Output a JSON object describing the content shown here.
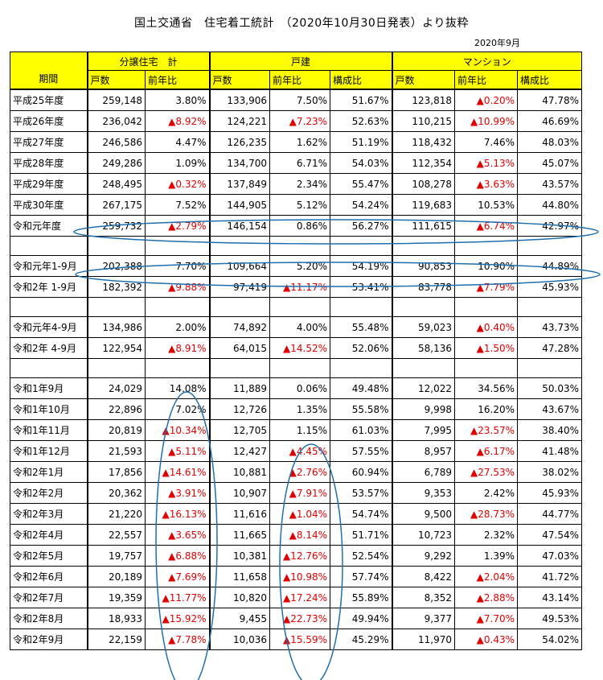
{
  "title": "国土交通省　住宅着工統計　（2020年10月30日発表）より抜粋",
  "subtitle": "2020年9月",
  "header": {
    "period": "期間",
    "group1": "分譲住宅　計",
    "group2": "戸建",
    "group3": "マンション",
    "units": "戸数",
    "yoy": "前年比",
    "share": "構成比"
  },
  "rows": [
    {
      "label": "平成25年度",
      "a": "259,148",
      "b": "3.80%",
      "c": "133,906",
      "d": "7.50%",
      "e": "51.67%",
      "f": "123,818",
      "g": "▲0.20%",
      "h": "47.78%"
    },
    {
      "label": "平成26年度",
      "a": "236,042",
      "b": "▲8.92%",
      "c": "124,221",
      "d": "▲7.23%",
      "e": "52.63%",
      "f": "110,215",
      "g": "▲10.99%",
      "h": "46.69%"
    },
    {
      "label": "平成27年度",
      "a": "246,586",
      "b": "4.47%",
      "c": "126,235",
      "d": "1.62%",
      "e": "51.19%",
      "f": "118,432",
      "g": "7.46%",
      "h": "48.03%"
    },
    {
      "label": "平成28年度",
      "a": "249,286",
      "b": "1.09%",
      "c": "134,700",
      "d": "6.71%",
      "e": "54.03%",
      "f": "112,354",
      "g": "▲5.13%",
      "h": "45.07%"
    },
    {
      "label": "平成29年度",
      "a": "248,495",
      "b": "▲0.32%",
      "c": "137,849",
      "d": "2.34%",
      "e": "55.47%",
      "f": "108,278",
      "g": "▲3.63%",
      "h": "43.57%"
    },
    {
      "label": "平成30年度",
      "a": "267,175",
      "b": "7.52%",
      "c": "144,905",
      "d": "5.12%",
      "e": "54.24%",
      "f": "119,683",
      "g": "10.53%",
      "h": "44.80%"
    },
    {
      "label": "令和元年度",
      "a": "259,732",
      "b": "▲2.79%",
      "c": "146,154",
      "d": "0.86%",
      "e": "56.27%",
      "f": "111,615",
      "g": "▲6.74%",
      "h": "42.97%"
    },
    {
      "gap": true
    },
    {
      "label": "令和元年1-9月",
      "a": "202,388",
      "b": "7.70%",
      "c": "109,664",
      "d": "5.20%",
      "e": "54.19%",
      "f": "90,853",
      "g": "10.90%",
      "h": "44.89%"
    },
    {
      "label": "令和2年 1-9月",
      "a": "182,392",
      "b": "▲9.88%",
      "c": "97,419",
      "d": "▲11.17%",
      "e": "53.41%",
      "f": "83,778",
      "g": "▲7.79%",
      "h": "45.93%"
    },
    {
      "gap": true
    },
    {
      "label": "令和元年4-9月",
      "a": "134,986",
      "b": "2.00%",
      "c": "74,892",
      "d": "4.00%",
      "e": "55.48%",
      "f": "59,023",
      "g": "▲0.40%",
      "h": "43.73%"
    },
    {
      "label": "令和2年 4-9月",
      "a": "122,954",
      "b": "▲8.91%",
      "c": "64,015",
      "d": "▲14.52%",
      "e": "52.06%",
      "f": "58,136",
      "g": "▲1.50%",
      "h": "47.28%"
    },
    {
      "gap": true
    },
    {
      "label": "令和1年9月",
      "a": "24,029",
      "b": "14.08%",
      "c": "11,889",
      "d": "0.06%",
      "e": "49.48%",
      "f": "12,022",
      "g": "34.56%",
      "h": "50.03%"
    },
    {
      "label": "令和1年10月",
      "a": "22,896",
      "b": "7.02%",
      "c": "12,726",
      "d": "1.35%",
      "e": "55.58%",
      "f": "9,998",
      "g": "16.20%",
      "h": "43.67%"
    },
    {
      "label": "令和1年11月",
      "a": "20,819",
      "b": "▲10.34%",
      "c": "12,705",
      "d": "1.15%",
      "e": "61.03%",
      "f": "7,995",
      "g": "▲23.57%",
      "h": "38.40%"
    },
    {
      "label": "令和1年12月",
      "a": "21,593",
      "b": "▲5.11%",
      "c": "12,427",
      "d": "▲4.45%",
      "e": "57.55%",
      "f": "8,957",
      "g": "▲6.17%",
      "h": "41.48%"
    },
    {
      "label": "令和2年1月",
      "a": "17,856",
      "b": "▲14.61%",
      "c": "10,881",
      "d": "▲2.76%",
      "e": "60.94%",
      "f": "6,789",
      "g": "▲27.53%",
      "h": "38.02%"
    },
    {
      "label": "令和2年2月",
      "a": "20,362",
      "b": "▲3.91%",
      "c": "10,907",
      "d": "▲7.91%",
      "e": "53.57%",
      "f": "9,353",
      "g": "2.42%",
      "h": "45.93%"
    },
    {
      "label": "令和2年3月",
      "a": "21,220",
      "b": "▲16.13%",
      "c": "11,616",
      "d": "▲1.04%",
      "e": "54.74%",
      "f": "9,500",
      "g": "▲28.73%",
      "h": "44.77%"
    },
    {
      "label": "令和2年4月",
      "a": "22,557",
      "b": "▲3.65%",
      "c": "11,665",
      "d": "▲8.14%",
      "e": "51.71%",
      "f": "10,723",
      "g": "2.32%",
      "h": "47.54%"
    },
    {
      "label": "令和2年5月",
      "a": "19,757",
      "b": "▲6.88%",
      "c": "10,381",
      "d": "▲12.76%",
      "e": "52.54%",
      "f": "9,292",
      "g": "1.39%",
      "h": "47.03%"
    },
    {
      "label": "令和2年6月",
      "a": "20,189",
      "b": "▲7.69%",
      "c": "11,658",
      "d": "▲10.98%",
      "e": "57.74%",
      "f": "8,422",
      "g": "▲2.04%",
      "h": "41.72%"
    },
    {
      "label": "令和2年7月",
      "a": "19,359",
      "b": "▲11.77%",
      "c": "10,820",
      "d": "▲17.24%",
      "e": "55.89%",
      "f": "8,352",
      "g": "▲2.88%",
      "h": "43.14%"
    },
    {
      "label": "令和2年8月",
      "a": "18,933",
      "b": "▲15.92%",
      "c": "9,455",
      "d": "▲22.73%",
      "e": "49.94%",
      "f": "9,377",
      "g": "▲7.70%",
      "h": "49.53%"
    },
    {
      "label": "令和2年9月",
      "a": "22,159",
      "b": "▲7.78%",
      "c": "10,036",
      "d": "▲15.59%",
      "e": "45.29%",
      "f": "11,970",
      "g": "▲0.43%",
      "h": "54.02%"
    }
  ],
  "colors": {
    "header_bg": "#ffff00",
    "negative": "#e00000",
    "annotation": "#1f6fae"
  }
}
